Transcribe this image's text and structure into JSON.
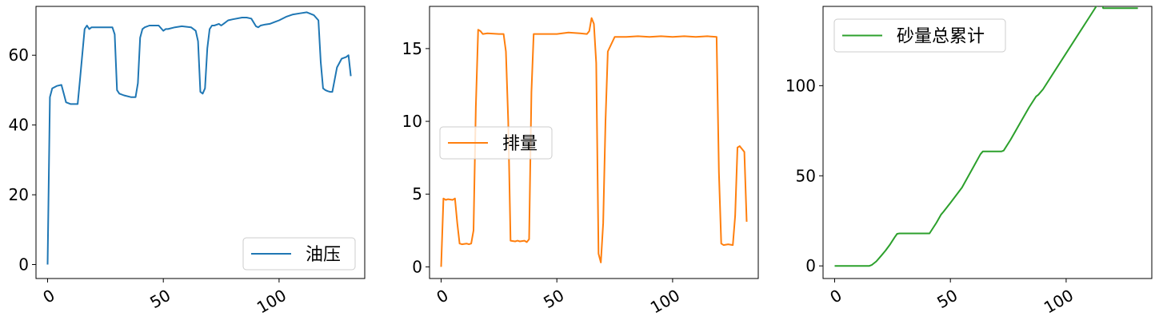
{
  "chart_data": [
    {
      "type": "line",
      "xlim": [
        -5,
        137
      ],
      "ylim": [
        -4,
        74
      ],
      "x_ticks": [
        0,
        50,
        100
      ],
      "x_tick_labels": [
        "0",
        "50",
        "100"
      ],
      "y_ticks": [
        0,
        20,
        40,
        60
      ],
      "y_tick_labels": [
        "0",
        "20",
        "40",
        "60"
      ],
      "legend_position": "lower-right",
      "series": [
        {
          "name": "油压",
          "color": "#1f77b4",
          "x": [
            0,
            1,
            2,
            4,
            6,
            7,
            8,
            10,
            13,
            14,
            16,
            17,
            18,
            19,
            20,
            24,
            28,
            29,
            30,
            31,
            33,
            36,
            38,
            39,
            40,
            41,
            42,
            44,
            45,
            48,
            50,
            51,
            52,
            55,
            58,
            62,
            64,
            65,
            66,
            67,
            68,
            69,
            70,
            71,
            72,
            74,
            75,
            76,
            78,
            80,
            84,
            86,
            88,
            90,
            91,
            92,
            94,
            96,
            98,
            100,
            103,
            106,
            109,
            112,
            115,
            117,
            118,
            119,
            120,
            121,
            122,
            123,
            125,
            127,
            129,
            130,
            131
          ],
          "values": [
            0,
            48,
            50.5,
            51.2,
            51.5,
            49,
            46.5,
            46,
            46,
            53,
            67.5,
            68.5,
            67.5,
            68,
            68,
            68,
            68,
            66,
            50,
            49,
            48.5,
            48,
            48,
            52,
            65,
            67.5,
            68,
            68.5,
            68.5,
            68.5,
            67,
            67.5,
            67.5,
            68,
            68.3,
            68,
            67,
            64,
            49.5,
            49,
            50.5,
            62,
            67.5,
            68.5,
            68.5,
            69,
            68.5,
            69,
            70,
            70.3,
            70.8,
            70.8,
            70.5,
            68.3,
            68,
            68.5,
            68.8,
            69,
            69.5,
            70,
            71,
            71.7,
            72,
            72.3,
            71.5,
            70,
            58,
            50.5,
            50,
            49.7,
            49.5,
            49.5,
            56.5,
            59,
            59.5,
            60,
            54
          ]
        }
      ]
    },
    {
      "type": "line",
      "xlim": [
        -5,
        137
      ],
      "ylim": [
        -0.8,
        17.9
      ],
      "x_ticks": [
        0,
        50,
        100
      ],
      "x_tick_labels": [
        "0",
        "50",
        "100"
      ],
      "y_ticks": [
        0,
        5,
        10,
        15
      ],
      "y_tick_labels": [
        "0",
        "5",
        "10",
        "15"
      ],
      "legend_position": "center-left",
      "series": [
        {
          "name": "排量",
          "color": "#ff7f0e",
          "x": [
            0,
            1,
            2,
            3,
            5,
            6,
            7,
            8,
            9,
            11,
            12,
            13,
            14,
            15,
            16,
            17,
            18,
            20,
            25,
            27,
            28,
            29,
            30,
            32,
            33,
            34,
            36,
            37,
            38,
            39,
            40,
            42,
            50,
            55,
            60,
            63,
            64,
            65,
            66,
            67,
            68,
            69,
            70,
            71,
            72,
            75,
            80,
            85,
            90,
            95,
            100,
            105,
            110,
            115,
            119,
            120,
            121,
            122,
            124,
            126,
            127,
            128,
            129,
            131,
            132
          ],
          "values": [
            0,
            4.7,
            4.6,
            4.65,
            4.6,
            4.7,
            3,
            1.6,
            1.55,
            1.6,
            1.55,
            1.6,
            2.5,
            11,
            16.3,
            16.2,
            16,
            16.05,
            16,
            16,
            14.8,
            10,
            1.8,
            1.75,
            1.8,
            1.75,
            1.8,
            1.7,
            1.9,
            12,
            16,
            16,
            16,
            16.1,
            16.05,
            16,
            16.2,
            17.1,
            16.7,
            14,
            0.9,
            0.3,
            3,
            10,
            14.8,
            15.8,
            15.8,
            15.85,
            15.8,
            15.85,
            15.8,
            15.85,
            15.8,
            15.85,
            15.8,
            6.5,
            1.6,
            1.5,
            1.55,
            1.5,
            3.5,
            8.2,
            8.3,
            7.9,
            3.1
          ]
        }
      ]
    },
    {
      "type": "line",
      "xlim": [
        -5,
        137
      ],
      "ylim": [
        -7,
        144
      ],
      "x_ticks": [
        0,
        50,
        100
      ],
      "x_tick_labels": [
        "0",
        "50",
        "100"
      ],
      "y_ticks": [
        0,
        50,
        100
      ],
      "y_tick_labels": [
        "0",
        "50",
        "100"
      ],
      "legend_position": "upper-left",
      "series": [
        {
          "name": "砂量总累计",
          "color": "#2ca02c",
          "x": [
            0,
            15,
            16,
            18,
            20,
            22,
            24,
            26,
            27,
            28,
            30,
            35,
            40,
            41,
            42,
            44,
            46,
            47,
            50,
            55,
            60,
            63,
            64,
            66,
            70,
            72,
            73,
            76,
            80,
            84,
            87,
            88,
            90,
            95,
            100,
            105,
            110,
            115,
            116,
            120,
            125,
            130,
            131
          ],
          "values": [
            0,
            0,
            0.5,
            2.5,
            5.5,
            8.5,
            12,
            16,
            17.8,
            18,
            18,
            18,
            18,
            18,
            20,
            24,
            28.5,
            30,
            35,
            43.5,
            55,
            62,
            63.5,
            63.5,
            63.5,
            63.5,
            64,
            70,
            79,
            88,
            94,
            95,
            98,
            108,
            118,
            128,
            138,
            148,
            143,
            143,
            143,
            143,
            143
          ]
        }
      ]
    }
  ]
}
